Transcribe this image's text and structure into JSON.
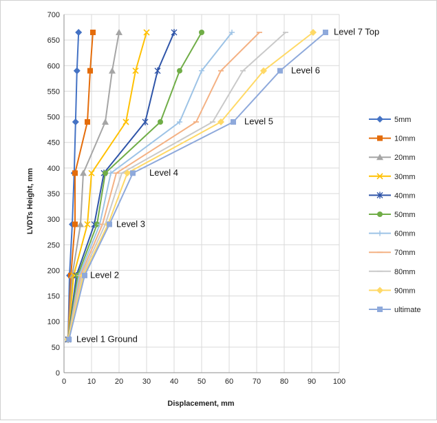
{
  "chart_data": {
    "type": "line",
    "title": "",
    "xlabel": "Displacement, mm",
    "ylabel": "LVDTs Height, mm",
    "xlim": [
      0,
      100
    ],
    "ylim": [
      0,
      700
    ],
    "x_ticks": [
      0,
      10,
      20,
      30,
      40,
      50,
      60,
      70,
      80,
      90,
      100
    ],
    "y_ticks": [
      0,
      50,
      100,
      150,
      200,
      250,
      300,
      350,
      400,
      450,
      500,
      550,
      600,
      650,
      700
    ],
    "grid": "horizontal and vertical",
    "legend_position": "right",
    "y": [
      65,
      190,
      290,
      390,
      490,
      590,
      665
    ],
    "series": [
      {
        "name": "5mm",
        "color": "#4472C4",
        "marker": "diamond",
        "x": [
          1.5,
          2,
          3,
          3.7,
          4.2,
          4.7,
          5.3
        ]
      },
      {
        "name": "10mm",
        "color": "#E46C0A",
        "marker": "square",
        "x": [
          1.5,
          2.5,
          4,
          4,
          8.5,
          9.5,
          10.5
        ]
      },
      {
        "name": "20mm",
        "color": "#A5A5A5",
        "marker": "triangle",
        "x": [
          1.5,
          3,
          6,
          7,
          15,
          17.5,
          20
        ]
      },
      {
        "name": "30mm",
        "color": "#FFC000",
        "marker": "x",
        "x": [
          1.5,
          3.5,
          8.5,
          10,
          22.5,
          26,
          30
        ]
      },
      {
        "name": "40mm",
        "color": "#2E54A8",
        "marker": "star",
        "x": [
          1.5,
          4.5,
          11,
          14.5,
          29.5,
          34,
          40
        ]
      },
      {
        "name": "50mm",
        "color": "#70AD47",
        "marker": "circle",
        "x": [
          1.5,
          5,
          12,
          15,
          35,
          42,
          50
        ]
      },
      {
        "name": "60mm",
        "color": "#9DC3E6",
        "marker": "plus",
        "x": [
          1.5,
          5.5,
          13,
          17,
          42,
          50,
          61
        ]
      },
      {
        "name": "70mm",
        "color": "#F4B183",
        "marker": "dash",
        "x": [
          1.5,
          6,
          14,
          19,
          48,
          57,
          71
        ]
      },
      {
        "name": "80mm",
        "color": "#C9C9C9",
        "marker": "dash",
        "x": [
          1.5,
          6.5,
          15,
          21,
          54,
          65,
          80.5
        ]
      },
      {
        "name": "90mm",
        "color": "#FFD966",
        "marker": "diamond",
        "x": [
          1.5,
          7,
          16,
          23,
          57,
          72.5,
          90.5
        ]
      },
      {
        "name": "ultimate",
        "color": "#8EA9DB",
        "marker": "square",
        "x": [
          1.8,
          7.5,
          16.5,
          25,
          61.5,
          78.5,
          95
        ]
      }
    ],
    "annotations": [
      {
        "text": "Level 1 Ground",
        "x": 4.5,
        "y": 60
      },
      {
        "text": "Level 2",
        "x": 9.5,
        "y": 185
      },
      {
        "text": "Level 3",
        "x": 19,
        "y": 285
      },
      {
        "text": "Level 4",
        "x": 31,
        "y": 385
      },
      {
        "text": "Level 5",
        "x": 65.5,
        "y": 485
      },
      {
        "text": "Level 6",
        "x": 82.5,
        "y": 585
      },
      {
        "text": "Level 7 Top",
        "x": 98,
        "y": 660
      }
    ]
  }
}
